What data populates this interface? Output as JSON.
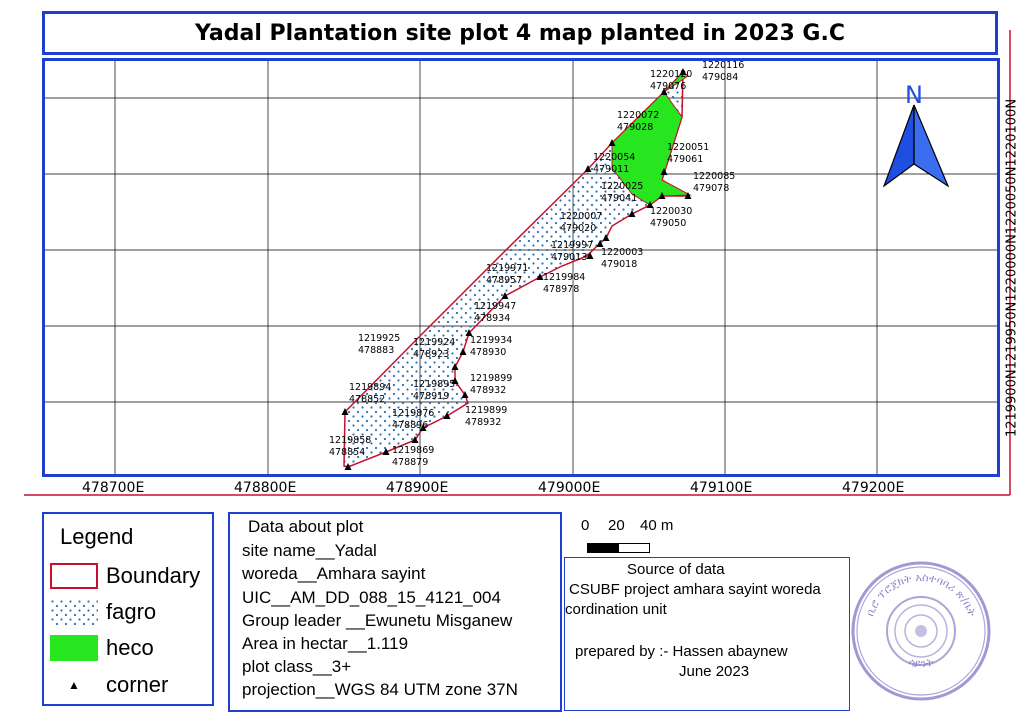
{
  "title": "Yadal Plantation site plot 4 map planted in 2023 G.C",
  "map": {
    "north_arrow_label": "N",
    "easting_labels": [
      "478700E",
      "478800E",
      "478900E",
      "479000E",
      "479100E",
      "479200E"
    ],
    "northing_label": "1219900N1219950N1220000N1220050N1220100N",
    "colors": {
      "boundary": "#c8102e",
      "fagro_dots": "#2f6fb0",
      "heco": "#27e61f",
      "grid": "#000000",
      "frame": "#1f3fd1",
      "north_arrow": "#1f4fe0"
    },
    "point_labels": [
      {
        "n": "1220116",
        "e": "479084"
      },
      {
        "n": "1220120",
        "e": "479076"
      },
      {
        "n": "1220072",
        "e": "479028"
      },
      {
        "n": "1220051",
        "e": "479061"
      },
      {
        "n": "1220054",
        "e": "479011"
      },
      {
        "n": "1220085",
        "e": "479078"
      },
      {
        "n": "1220025",
        "e": "479041"
      },
      {
        "n": "1220030",
        "e": "479050"
      },
      {
        "n": "1220007",
        "e": "479020"
      },
      {
        "n": "1219997",
        "e": "479013"
      },
      {
        "n": "1220003",
        "e": "479018"
      },
      {
        "n": "1219971",
        "e": "478957"
      },
      {
        "n": "1219984",
        "e": "478978"
      },
      {
        "n": "1219947",
        "e": "478934"
      },
      {
        "n": "1219925",
        "e": "478883"
      },
      {
        "n": "1219924",
        "e": "478923"
      },
      {
        "n": "1219934",
        "e": "478930"
      },
      {
        "n": "1219894",
        "e": "478852"
      },
      {
        "n": "1219895",
        "e": "478919"
      },
      {
        "n": "1219899",
        "e": "478932"
      },
      {
        "n": "1219876",
        "e": "478896"
      },
      {
        "n": "1219899",
        "e": "478932"
      },
      {
        "n": "1219858",
        "e": "478854"
      },
      {
        "n": "1219869",
        "e": "478879"
      }
    ]
  },
  "legend": {
    "title": "Legend",
    "items": [
      {
        "label": "Boundary",
        "type": "boundary"
      },
      {
        "label": "fagro",
        "type": "fagro"
      },
      {
        "label": "heco",
        "type": "heco"
      },
      {
        "label": "corner",
        "type": "corner"
      }
    ]
  },
  "info": {
    "heading": "Data about plot",
    "lines": [
      "site name__Yadal",
      "woreda__Amhara sayint",
      "UIC__AM_DD_088_15_4121_004",
      "Group leader __Ewunetu Misganew",
      "Area in hectar__1.119",
      "plot class__3+",
      "projection__WGS 84 UTM zone 37N"
    ]
  },
  "scale_bar": {
    "labels": [
      "0",
      "20",
      "40 m"
    ]
  },
  "source": {
    "heading": "Source of data",
    "line1": "CSUBF project amhara sayint woreda",
    "line2": "cordination unit",
    "prepared": "prepared by :- Hassen abaynew",
    "date": "June 2023"
  },
  "stamp": {
    "top_text": "ቢሮ ፕሮጀክት አስተባባሪ ጽ/ቤት",
    "bottom_text": "ሳይንት"
  }
}
